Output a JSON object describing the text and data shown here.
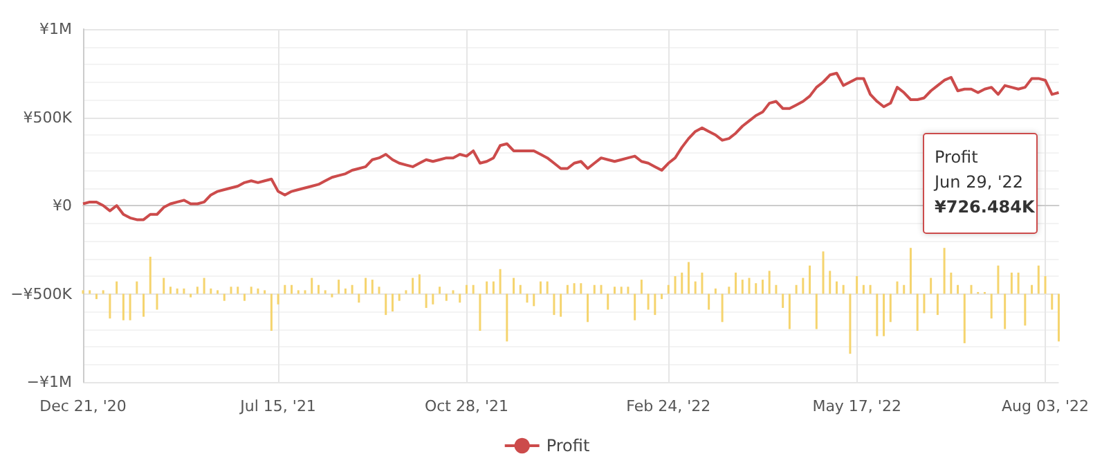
{
  "chart_data": {
    "type": "line",
    "categories": [
      "Dec 21, '20",
      null,
      null,
      null,
      null,
      null,
      null,
      null,
      null,
      null,
      null,
      null,
      null,
      null,
      null,
      null,
      null,
      null,
      null,
      null,
      null,
      null,
      null,
      null,
      null,
      null,
      null,
      null,
      null,
      "Jul 15, '21",
      null,
      null,
      null,
      null,
      null,
      null,
      null,
      null,
      null,
      null,
      null,
      null,
      null,
      null,
      null,
      null,
      null,
      null,
      null,
      null,
      null,
      null,
      null,
      null,
      null,
      null,
      null,
      "Oct 28, '21",
      null,
      null,
      null,
      null,
      null,
      null,
      null,
      null,
      null,
      null,
      null,
      null,
      null,
      null,
      null,
      null,
      null,
      null,
      null,
      null,
      null,
      null,
      null,
      null,
      null,
      null,
      null,
      null,
      null,
      "Feb 24, '22",
      null,
      null,
      null,
      null,
      null,
      null,
      null,
      null,
      null,
      null,
      null,
      null,
      null,
      null,
      null,
      null,
      null,
      null,
      null,
      null,
      null,
      null,
      null,
      null,
      null,
      null,
      null,
      "May 17, '22",
      null,
      null,
      null,
      null,
      null,
      null,
      null,
      null,
      null,
      null,
      null,
      null,
      null,
      null,
      null,
      null,
      null,
      null,
      null,
      null,
      null,
      null,
      null,
      null,
      null,
      null,
      null,
      "Aug 03, '22",
      null,
      null
    ],
    "series": [
      {
        "name": "Profit",
        "type": "line",
        "color": "#cc4b4b",
        "values": [
          10000,
          20000,
          20000,
          0,
          -30000,
          0,
          -50000,
          -70000,
          -80000,
          -80000,
          -50000,
          -50000,
          -10000,
          10000,
          20000,
          30000,
          10000,
          10000,
          20000,
          60000,
          80000,
          90000,
          100000,
          110000,
          130000,
          140000,
          130000,
          140000,
          150000,
          80000,
          60000,
          80000,
          90000,
          100000,
          110000,
          120000,
          140000,
          160000,
          170000,
          180000,
          200000,
          210000,
          220000,
          260000,
          270000,
          290000,
          260000,
          240000,
          230000,
          220000,
          240000,
          260000,
          250000,
          260000,
          270000,
          270000,
          290000,
          280000,
          310000,
          240000,
          250000,
          270000,
          340000,
          350000,
          310000,
          310000,
          310000,
          310000,
          290000,
          270000,
          240000,
          210000,
          210000,
          240000,
          250000,
          210000,
          240000,
          270000,
          260000,
          250000,
          260000,
          270000,
          280000,
          250000,
          240000,
          220000,
          200000,
          240000,
          270000,
          330000,
          380000,
          420000,
          440000,
          420000,
          400000,
          370000,
          380000,
          410000,
          450000,
          480000,
          510000,
          530000,
          580000,
          590000,
          550000,
          550000,
          570000,
          590000,
          620000,
          670000,
          700000,
          740000,
          750000,
          680000,
          700000,
          720000,
          720000,
          630000,
          590000,
          560000,
          580000,
          670000,
          640000,
          600000,
          600000,
          610000,
          650000,
          680000,
          710000,
          726484,
          650000,
          660000,
          660000,
          640000,
          660000,
          670000,
          630000,
          680000,
          670000,
          660000,
          670000,
          720000,
          720000,
          710000,
          630000,
          640000
        ]
      },
      {
        "type": "bar",
        "color": "#f5d46e",
        "base": [
          -500000,
          -500000,
          -500000,
          -500000,
          -500000,
          -500000,
          -500000,
          -500000,
          -500000,
          -500000,
          -500000,
          -500000,
          -500000,
          -500000,
          -500000,
          -500000,
          -500000,
          -500000,
          -500000,
          -500000,
          -500000,
          -500000,
          -500000,
          -500000,
          -500000,
          -500000,
          -500000,
          -500000,
          -500000,
          -500000,
          -500000,
          -500000,
          -500000,
          -500000,
          -500000,
          -500000,
          -500000,
          -500000,
          -500000,
          -500000,
          -500000,
          -500000,
          -500000,
          -500000,
          -500000,
          -500000,
          -500000,
          -500000,
          -500000,
          -500000,
          -500000,
          -500000,
          -500000,
          -500000,
          -500000,
          -500000,
          -500000,
          -500000,
          -500000,
          -500000,
          -500000,
          -500000,
          -500000,
          -500000,
          -500000,
          -500000,
          -500000,
          -500000,
          -500000,
          -500000,
          -500000,
          -500000,
          -500000,
          -500000,
          -500000,
          -500000,
          -500000,
          -500000,
          -500000,
          -500000,
          -500000,
          -500000,
          -500000,
          -500000,
          -500000,
          -500000,
          -500000,
          -500000,
          -500000,
          -500000,
          -500000,
          -500000,
          -500000,
          -500000,
          -500000,
          -500000,
          -500000,
          -500000,
          -500000,
          -500000,
          -500000,
          -500000,
          -500000,
          -500000,
          -500000,
          -500000,
          -500000,
          -500000,
          -500000,
          -500000,
          -500000,
          -500000,
          -500000,
          -500000,
          -500000,
          -500000,
          -500000,
          -500000,
          -500000,
          -500000,
          -500000,
          -500000,
          -500000,
          -500000,
          -500000,
          -500000,
          -500000,
          -500000,
          -500000,
          -500000,
          -500000,
          -500000,
          -500000,
          -500000,
          -500000,
          -500000,
          -500000,
          -500000,
          -500000,
          -500000,
          -500000,
          -500000,
          -500000,
          -500000,
          -500000,
          -500000
        ],
        "values": [
          20000,
          20000,
          -30000,
          20000,
          -140000,
          70000,
          -150000,
          -150000,
          70000,
          -130000,
          210000,
          -90000,
          90000,
          40000,
          30000,
          30000,
          -20000,
          40000,
          90000,
          30000,
          20000,
          -40000,
          40000,
          40000,
          -40000,
          40000,
          30000,
          20000,
          -210000,
          -60000,
          50000,
          50000,
          20000,
          20000,
          90000,
          50000,
          20000,
          -20000,
          80000,
          30000,
          50000,
          -50000,
          90000,
          80000,
          40000,
          -120000,
          -100000,
          -40000,
          20000,
          90000,
          110000,
          -80000,
          -60000,
          40000,
          -40000,
          20000,
          -50000,
          50000,
          50000,
          -210000,
          70000,
          70000,
          140000,
          -270000,
          90000,
          50000,
          -50000,
          -70000,
          70000,
          70000,
          -120000,
          -130000,
          50000,
          60000,
          60000,
          -160000,
          50000,
          50000,
          -90000,
          40000,
          40000,
          40000,
          -150000,
          80000,
          -90000,
          -120000,
          -30000,
          50000,
          100000,
          120000,
          180000,
          70000,
          120000,
          -90000,
          30000,
          -160000,
          40000,
          120000,
          80000,
          90000,
          60000,
          80000,
          130000,
          50000,
          -80000,
          -200000,
          50000,
          90000,
          160000,
          -200000,
          240000,
          130000,
          70000,
          50000,
          -340000,
          100000,
          50000,
          50000,
          -240000,
          -240000,
          -160000,
          70000,
          50000,
          260000,
          -210000,
          -110000,
          90000,
          -120000,
          260000,
          120000,
          50000,
          -280000,
          50000,
          10000,
          10000,
          -140000,
          160000,
          -200000,
          120000,
          120000,
          -180000,
          50000,
          160000,
          100000,
          -90000,
          -270000
        ]
      }
    ],
    "ylim": [
      -1000000,
      1000000
    ],
    "yticks": [
      {
        "value": -1000000,
        "label": "−¥1M"
      },
      {
        "value": -500000,
        "label": "−¥500K"
      },
      {
        "value": 0,
        "label": "¥0"
      },
      {
        "value": 500000,
        "label": "¥500K"
      },
      {
        "value": 1000000,
        "label": "¥1M"
      }
    ],
    "grid": true,
    "legend": "bottom",
    "marker": "none",
    "annotations": [
      "Profit\nJun 29, '22\n¥726.484K"
    ]
  }
}
